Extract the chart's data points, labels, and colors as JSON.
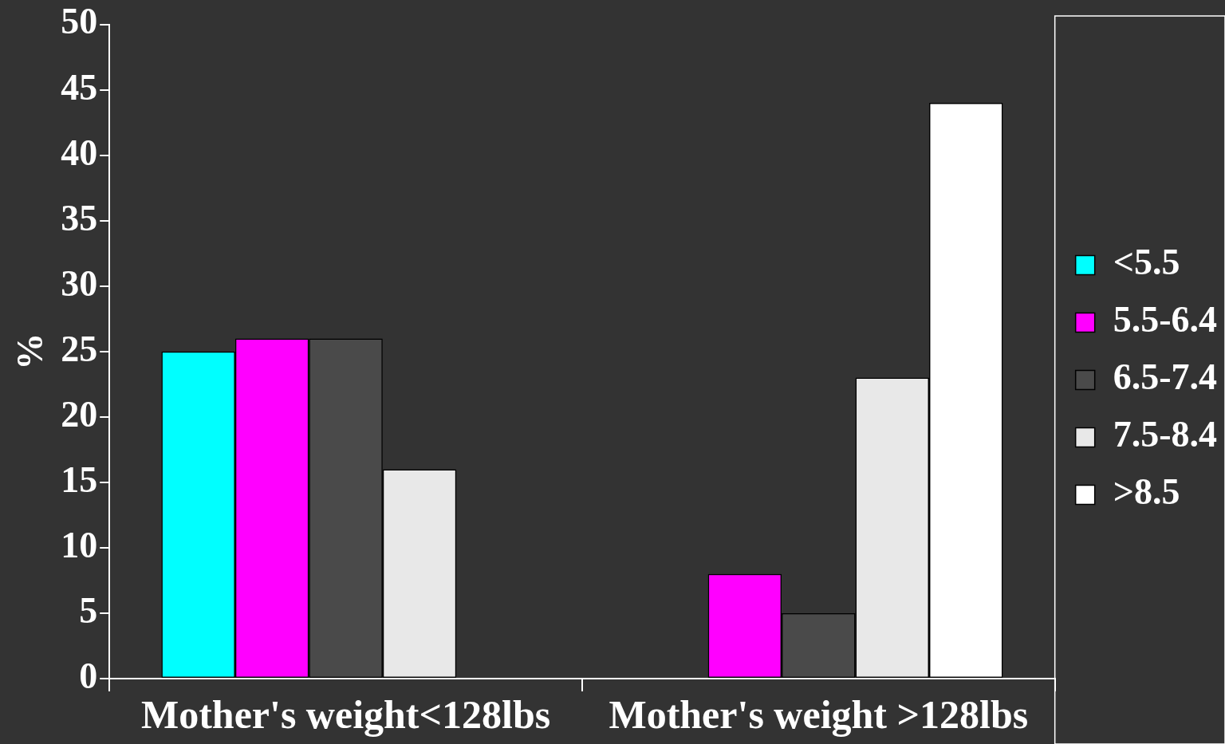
{
  "chart_data": {
    "type": "bar",
    "ylabel": "%",
    "categories": [
      "Mother's weight<128lbs",
      "Mother's weight >128lbs"
    ],
    "series": [
      {
        "name": "<5.5",
        "color": "#00ffff",
        "values": [
          25,
          0
        ]
      },
      {
        "name": "5.5-6.4",
        "color": "#ff00ff",
        "values": [
          26,
          8
        ]
      },
      {
        "name": "6.5-7.4",
        "color": "#4a4a4a",
        "values": [
          26,
          5
        ]
      },
      {
        "name": "7.5-8.4",
        "color": "#e8e8e8",
        "values": [
          16,
          23
        ]
      },
      {
        "name": ">8.5",
        "color": "#ffffff",
        "values": [
          0,
          44
        ]
      }
    ],
    "ylim": [
      0,
      50
    ],
    "yticks": [
      0,
      5,
      10,
      15,
      20,
      25,
      30,
      35,
      40,
      45,
      50
    ],
    "grid": false,
    "legend": "right"
  }
}
